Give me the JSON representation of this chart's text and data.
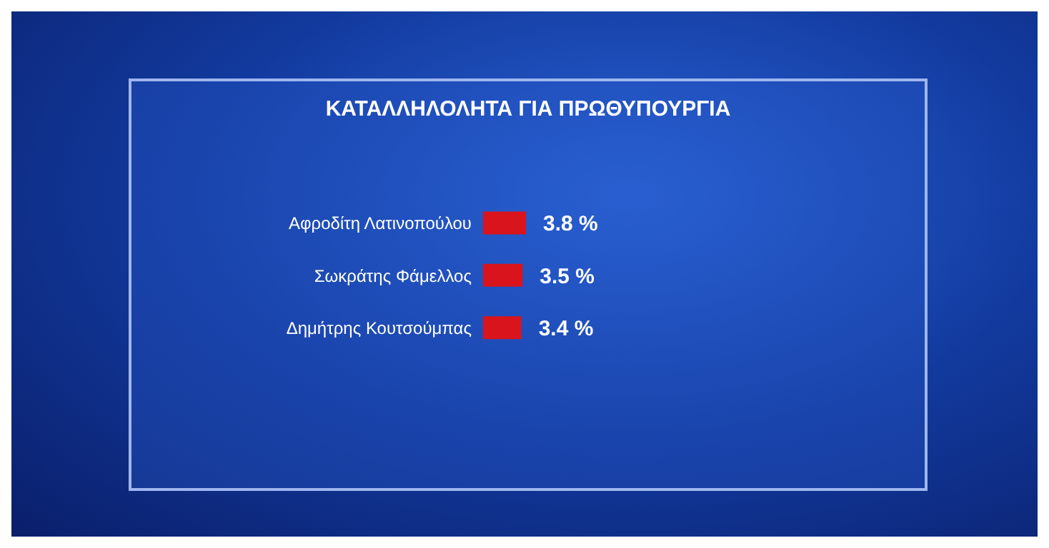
{
  "chart_data": {
    "type": "bar",
    "orientation": "horizontal",
    "title": "ΚΑΤΑΛΛΗΛΟΛΗΤΑ ΓΙΑ ΠΡΩΘΥΠΟΥΡΓΙΑ",
    "categories": [
      "Αφροδίτη Λατινοπούλου",
      "Σωκράτης Φάμελλος",
      "Δημήτρης Κουτσούμπας"
    ],
    "values": [
      3.8,
      3.5,
      3.4
    ],
    "value_labels": [
      "3.8 %",
      "3.5 %",
      "3.4 %"
    ],
    "color": "#d9141c"
  }
}
